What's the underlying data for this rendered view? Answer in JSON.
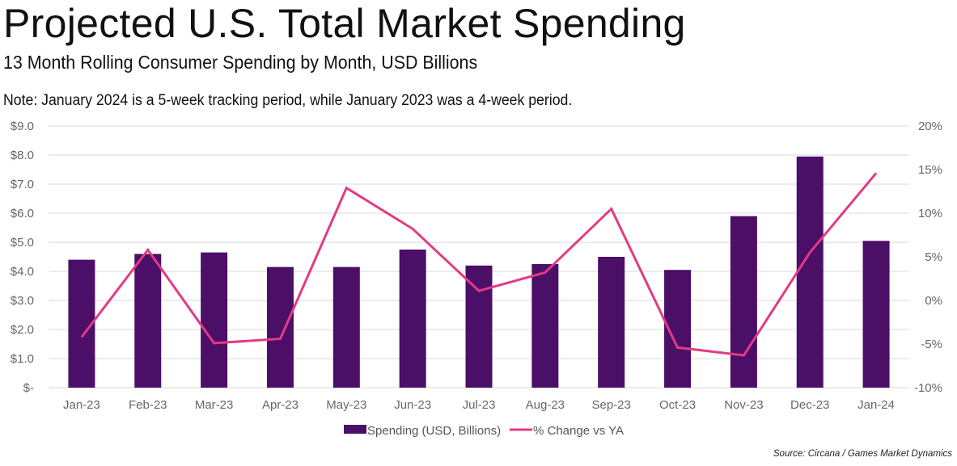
{
  "header": {
    "title": "Projected U.S. Total Market Spending",
    "subtitle": "13 Month Rolling Consumer Spending by Month, USD Billions",
    "note": "Note: January 2024 is a 5-week tracking period, while January 2023 was a 4-week period."
  },
  "source": "Source: Circana / Games Market Dynamics",
  "colors": {
    "bar": "#4B0F68",
    "line": "#E33A85",
    "grid": "#E6E6E6"
  },
  "chart_data": {
    "type": "bar",
    "title": "Projected U.S. Total Market Spending",
    "categories": [
      "Jan-23",
      "Feb-23",
      "Mar-23",
      "Apr-23",
      "May-23",
      "Jun-23",
      "Jul-23",
      "Aug-23",
      "Sep-23",
      "Oct-23",
      "Nov-23",
      "Dec-23",
      "Jan-24"
    ],
    "series": [
      {
        "name": "Spending (USD, Billions)",
        "type": "bar",
        "axis": "left",
        "values": [
          4.4,
          4.6,
          4.65,
          4.15,
          4.15,
          4.75,
          4.2,
          4.25,
          4.5,
          4.05,
          5.9,
          7.95,
          5.05
        ]
      },
      {
        "name": "% Change vs YA",
        "type": "line",
        "axis": "right",
        "values": [
          -4.2,
          5.8,
          -4.9,
          -4.4,
          12.9,
          8.2,
          1.1,
          3.2,
          10.5,
          -5.4,
          -6.3,
          5.5,
          14.6
        ]
      }
    ],
    "left_axis": {
      "ylim": [
        0,
        9
      ],
      "ticks": [
        "$-",
        "$1.0",
        "$2.0",
        "$3.0",
        "$4.0",
        "$5.0",
        "$6.0",
        "$7.0",
        "$8.0",
        "$9.0"
      ]
    },
    "right_axis": {
      "ylim": [
        -10,
        20
      ],
      "ticks": [
        "-10%",
        "-5%",
        "0%",
        "5%",
        "10%",
        "15%",
        "20%"
      ]
    },
    "grid": true,
    "legend": {
      "position": "bottom-center",
      "items": [
        "Spending (USD, Billions)",
        "% Change vs YA"
      ]
    }
  }
}
